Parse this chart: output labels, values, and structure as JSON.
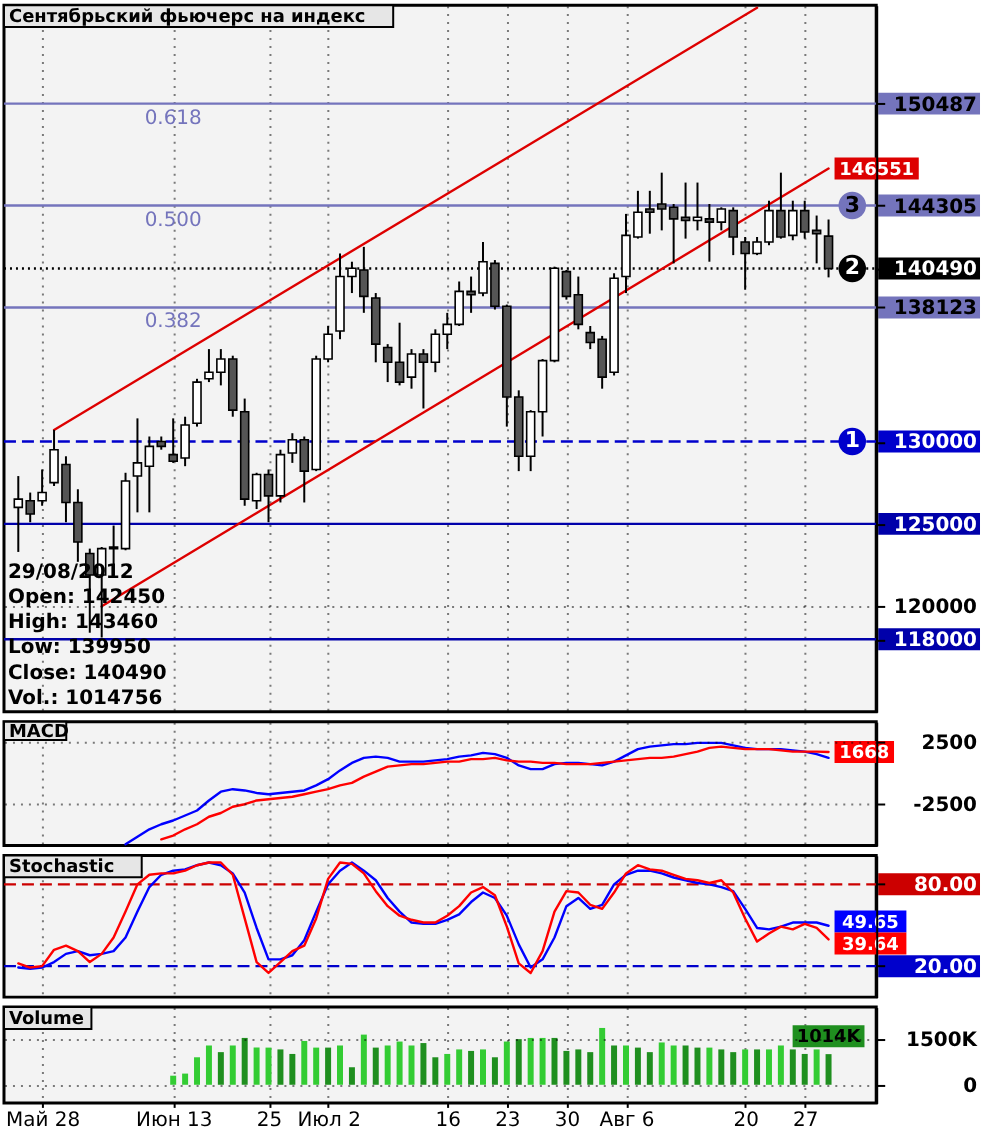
{
  "chart_data": [
    {
      "type": "candlestick",
      "title": "Сентябрьский фьючерс на индекс",
      "categories": [
        null,
        null,
        "Май 28",
        null,
        null,
        null,
        null,
        null,
        null,
        null,
        null,
        null,
        null,
        "Июн 13",
        null,
        null,
        null,
        null,
        null,
        null,
        null,
        "25",
        null,
        null,
        null,
        null,
        "Июл 2",
        null,
        null,
        null,
        null,
        null,
        null,
        null,
        null,
        null,
        "16",
        null,
        null,
        null,
        null,
        "23",
        null,
        null,
        null,
        null,
        "30",
        null,
        null,
        null,
        null,
        "Авг 6",
        null,
        null,
        null,
        null,
        null,
        null,
        null,
        null,
        null,
        "20",
        null,
        null,
        null,
        null,
        "27",
        null,
        null
      ],
      "ohlc": [
        [
          126000,
          127900,
          123300,
          126500
        ],
        [
          126400,
          126900,
          125100,
          125600
        ],
        [
          126400,
          128300,
          126100,
          126900
        ],
        [
          127500,
          130700,
          127300,
          129500
        ],
        [
          128600,
          129100,
          125100,
          126300
        ],
        [
          126300,
          127100,
          122700,
          123900
        ],
        [
          123200,
          123500,
          118400,
          121900
        ],
        [
          121900,
          123600,
          118110,
          123500
        ],
        [
          123500,
          124900,
          121900,
          123600
        ],
        [
          123500,
          128100,
          123400,
          127600
        ],
        [
          127900,
          131400,
          125700,
          128700
        ],
        [
          128500,
          130300,
          125700,
          129700
        ],
        [
          130000,
          130300,
          129500,
          129700
        ],
        [
          129200,
          131400,
          128700,
          128800
        ],
        [
          129000,
          131500,
          128500,
          131000
        ],
        [
          131100,
          133800,
          130900,
          133600
        ],
        [
          133800,
          135600,
          133600,
          134200
        ],
        [
          134200,
          135600,
          133400,
          135000
        ],
        [
          135000,
          135200,
          131500,
          131900
        ],
        [
          131800,
          132600,
          126100,
          126500
        ],
        [
          126400,
          128100,
          125900,
          128000
        ],
        [
          128000,
          128300,
          125100,
          126700
        ],
        [
          126700,
          129500,
          126300,
          129200
        ],
        [
          129300,
          130500,
          128700,
          130100
        ],
        [
          130100,
          130300,
          126300,
          128200
        ],
        [
          128300,
          135200,
          128200,
          135000
        ],
        [
          135000,
          137000,
          134800,
          136500
        ],
        [
          136700,
          141400,
          136200,
          140000
        ],
        [
          140000,
          140900,
          139000,
          140500
        ],
        [
          140400,
          141800,
          137800,
          138800
        ],
        [
          138700,
          139000,
          134800,
          135900
        ],
        [
          135700,
          135900,
          133600,
          134800
        ],
        [
          134800,
          137200,
          133400,
          133600
        ],
        [
          133900,
          135600,
          133200,
          135300
        ],
        [
          135300,
          135600,
          132000,
          134800
        ],
        [
          134800,
          136800,
          134200,
          136500
        ],
        [
          136500,
          137800,
          135600,
          137100
        ],
        [
          137100,
          139700,
          137000,
          139100
        ],
        [
          139100,
          140000,
          137800,
          138900
        ],
        [
          139000,
          142100,
          138800,
          140900
        ],
        [
          140800,
          141000,
          138000,
          138200
        ],
        [
          138200,
          138300,
          130900,
          132700
        ],
        [
          132700,
          133100,
          128200,
          129100
        ],
        [
          129100,
          131900,
          128200,
          131800
        ],
        [
          131800,
          135000,
          130300,
          134900
        ],
        [
          134900,
          140600,
          134800,
          140500
        ],
        [
          140300,
          140400,
          138600,
          138800
        ],
        [
          138900,
          140000,
          136800,
          137100
        ],
        [
          136600,
          137000,
          135600,
          136000
        ],
        [
          136200,
          136400,
          133200,
          133900
        ],
        [
          134200,
          140200,
          134000,
          139900
        ],
        [
          140000,
          143800,
          139000,
          142500
        ],
        [
          142400,
          145200,
          142300,
          143900
        ],
        [
          144100,
          145200,
          142600,
          143900
        ],
        [
          144400,
          146300,
          142800,
          144100
        ],
        [
          144200,
          144400,
          140800,
          143500
        ],
        [
          143600,
          145700,
          142300,
          143400
        ],
        [
          143400,
          145700,
          142800,
          143600
        ],
        [
          143500,
          144400,
          140900,
          143300
        ],
        [
          143300,
          144200,
          142800,
          144100
        ],
        [
          144000,
          144200,
          141300,
          142400
        ],
        [
          142100,
          142400,
          139200,
          141400
        ],
        [
          141400,
          142400,
          141300,
          142100
        ],
        [
          142100,
          144600,
          141900,
          144000
        ],
        [
          144000,
          146300,
          142300,
          142400
        ],
        [
          142500,
          144600,
          142200,
          144000
        ],
        [
          144000,
          144600,
          142300,
          142700
        ],
        [
          142800,
          143700,
          140800,
          142600
        ],
        [
          142450,
          143460,
          139950,
          140490
        ]
      ],
      "colors": [
        "#ffffff",
        "#555555",
        "#ffffff",
        "#ffffff",
        "#555555",
        "#555555",
        "#555555",
        "#ffffff",
        "#ffffff",
        "#ffffff",
        "#ffffff",
        "#ffffff",
        "#555555",
        "#555555",
        "#ffffff",
        "#ffffff",
        "#ffffff",
        "#ffffff",
        "#555555",
        "#555555",
        "#ffffff",
        "#555555",
        "#ffffff",
        "#ffffff",
        "#555555",
        "#ffffff",
        "#ffffff",
        "#ffffff",
        "#ffffff",
        "#555555",
        "#555555",
        "#555555",
        "#555555",
        "#ffffff",
        "#555555",
        "#ffffff",
        "#ffffff",
        "#ffffff",
        "#555555",
        "#ffffff",
        "#555555",
        "#555555",
        "#555555",
        "#ffffff",
        "#ffffff",
        "#ffffff",
        "#555555",
        "#555555",
        "#555555",
        "#555555",
        "#ffffff",
        "#ffffff",
        "#ffffff",
        "#555555",
        "#555555",
        "#555555",
        "#555555",
        "#ffffff",
        "#555555",
        "#ffffff",
        "#555555",
        "#555555",
        "#ffffff",
        "#ffffff",
        "#555555",
        "#ffffff",
        "#555555",
        "#555555",
        "#555555"
      ],
      "series": [
        {
          "type": "line",
          "color": "#dd0000",
          "values": [
            null,
            null,
            null,
            130700,
            null,
            null,
            null,
            null,
            null,
            null,
            null,
            null,
            null,
            null,
            null,
            null,
            null,
            null,
            null,
            null,
            null,
            null,
            null,
            null,
            null,
            null,
            null,
            null,
            null,
            null,
            null,
            null,
            null,
            null,
            null,
            null,
            null,
            null,
            null,
            null,
            null,
            null,
            null,
            null,
            null,
            null,
            null,
            null,
            null,
            null,
            null,
            null,
            null,
            null,
            null,
            null,
            null,
            null,
            null,
            null,
            null,
            null,
            156300,
            null,
            null,
            null,
            null,
            null,
            null
          ]
        },
        {
          "type": "line",
          "color": "#dd0000",
          "values": [
            null,
            null,
            null,
            null,
            null,
            null,
            null,
            120000,
            null,
            null,
            null,
            null,
            null,
            null,
            null,
            null,
            null,
            null,
            null,
            null,
            null,
            null,
            null,
            null,
            null,
            null,
            null,
            null,
            null,
            null,
            null,
            null,
            null,
            null,
            null,
            null,
            null,
            null,
            null,
            null,
            null,
            null,
            null,
            null,
            null,
            null,
            null,
            null,
            null,
            null,
            null,
            null,
            null,
            null,
            null,
            null,
            null,
            null,
            null,
            null,
            null,
            null,
            null,
            null,
            null,
            null,
            null,
            null,
            146551
          ],
          "value_labels": [
            null,
            null,
            null,
            null,
            null,
            null,
            null,
            null,
            null,
            null,
            null,
            null,
            null,
            null,
            null,
            null,
            null,
            null,
            null,
            null,
            null,
            null,
            null,
            null,
            null,
            null,
            null,
            null,
            null,
            null,
            null,
            null,
            null,
            null,
            null,
            null,
            null,
            null,
            null,
            null,
            null,
            null,
            null,
            null,
            null,
            null,
            null,
            null,
            null,
            null,
            null,
            null,
            null,
            null,
            null,
            null,
            null,
            null,
            null,
            null,
            null,
            null,
            null,
            null,
            null,
            null,
            null,
            null,
            "146551"
          ]
        }
      ],
      "ylim": [
        113610,
        156460
      ],
      "yticks": [
        118000,
        120000,
        125000,
        130000,
        138123,
        140490,
        144305,
        150487
      ],
      "ref_lines": [
        {
          "axis": "y",
          "value": 150487,
          "color": "#7474bc"
        },
        {
          "axis": "y",
          "value": 144305,
          "color": "#7474bc"
        },
        {
          "axis": "y",
          "value": 138123,
          "color": "#7474bc"
        },
        {
          "axis": "y",
          "value": 140490,
          "color": "#000000",
          "line_style": "dotted"
        },
        {
          "axis": "y",
          "value": 130000,
          "color": "#0000cc",
          "line_style": "dashed"
        },
        {
          "axis": "y",
          "value": 125000,
          "color": "#0000aa"
        },
        {
          "axis": "y",
          "value": 118000,
          "color": "#0000aa"
        }
      ],
      "annotations": [
        "29/08/2012",
        "Open: 142450",
        "High: 143460",
        "Low: 139950",
        "Close: 140490",
        "Vol.: 1014756",
        {
          "text": "0.618",
          "x": "Июн 13",
          "y": 150487
        },
        {
          "text": "0.500",
          "x": "Июн 13",
          "y": 144305
        },
        {
          "text": "0.382",
          "x": "Июн 13",
          "y": 138123
        },
        {
          "text": "1",
          "y": 130000
        },
        {
          "text": "3",
          "y": 144305
        },
        {
          "text": "2",
          "y": 140490
        }
      ],
      "grid": true,
      "tick_labels": "y"
    },
    {
      "type": "line",
      "title": "MACD",
      "categories": [
        null,
        null,
        "Май 28",
        null,
        null,
        null,
        null,
        null,
        null,
        null,
        null,
        null,
        null,
        "Июн 13",
        null,
        null,
        null,
        null,
        null,
        null,
        null,
        "25",
        null,
        null,
        null,
        null,
        "Июл 2",
        null,
        null,
        null,
        null,
        null,
        null,
        null,
        null,
        null,
        "16",
        null,
        null,
        null,
        null,
        "23",
        null,
        null,
        null,
        null,
        "30",
        null,
        null,
        null,
        null,
        "Авг 6",
        null,
        null,
        null,
        null,
        null,
        null,
        null,
        null,
        null,
        "20",
        null,
        null,
        null,
        null,
        "27",
        null,
        null
      ],
      "series": [
        {
          "color": "#0000ff",
          "values": [
            null,
            null,
            null,
            null,
            null,
            null,
            null,
            null,
            null,
            -5700,
            -5100,
            -4500,
            -4100,
            -3800,
            -3400,
            -3000,
            -2200,
            -1500,
            -1300,
            -1400,
            -1600,
            -1700,
            -1600,
            -1500,
            -1400,
            -1000,
            -500,
            200,
            800,
            1200,
            1300,
            1200,
            900,
            900,
            900,
            1000,
            1100,
            1300,
            1400,
            1600,
            1500,
            1200,
            600,
            300,
            300,
            700,
            800,
            800,
            700,
            600,
            900,
            1400,
            1900,
            2100,
            2200,
            2300,
            2300,
            2400,
            2400,
            2400,
            2200,
            2000,
            1900,
            1900,
            1900,
            1800,
            1700,
            1500,
            1200
          ]
        },
        {
          "color": "#ff0000",
          "values": [
            null,
            null,
            null,
            null,
            null,
            null,
            null,
            null,
            null,
            null,
            null,
            null,
            -5300,
            -5000,
            -4500,
            -4100,
            -3500,
            -3200,
            -2700,
            -2500,
            -2200,
            -2100,
            -2000,
            -1900,
            -1700,
            -1500,
            -1300,
            -1000,
            -800,
            -300,
            100,
            500,
            600,
            700,
            700,
            800,
            900,
            900,
            1100,
            1100,
            1200,
            1000,
            900,
            900,
            800,
            800,
            700,
            700,
            700,
            800,
            900,
            1000,
            1100,
            1200,
            1200,
            1300,
            1500,
            1700,
            2000,
            2100,
            2000,
            1900,
            1900,
            1900,
            1800,
            1700,
            1700,
            1700,
            1668
          ],
          "value_labels": [
            null,
            null,
            null,
            null,
            null,
            null,
            null,
            null,
            null,
            null,
            null,
            null,
            null,
            null,
            null,
            null,
            null,
            null,
            null,
            null,
            null,
            null,
            null,
            null,
            null,
            null,
            null,
            null,
            null,
            null,
            null,
            null,
            null,
            null,
            null,
            null,
            null,
            null,
            null,
            null,
            null,
            null,
            null,
            null,
            null,
            null,
            null,
            null,
            null,
            null,
            null,
            null,
            null,
            null,
            null,
            null,
            null,
            null,
            null,
            null,
            null,
            null,
            null,
            null,
            null,
            null,
            null,
            null,
            "1668"
          ]
        }
      ],
      "ylim": [
        -5790,
        4090
      ],
      "yticks": [
        2500,
        -2500
      ],
      "grid": true,
      "tick_labels": "y"
    },
    {
      "type": "line",
      "title": "Stochastic",
      "categories": [
        null,
        null,
        "Май 28",
        null,
        null,
        null,
        null,
        null,
        null,
        null,
        null,
        null,
        null,
        "Июн 13",
        null,
        null,
        null,
        null,
        null,
        null,
        null,
        "25",
        null,
        null,
        null,
        null,
        "Июл 2",
        null,
        null,
        null,
        null,
        null,
        null,
        null,
        null,
        null,
        "16",
        null,
        null,
        null,
        null,
        "23",
        null,
        null,
        null,
        null,
        "30",
        null,
        null,
        null,
        null,
        "Авг 6",
        null,
        null,
        null,
        null,
        null,
        null,
        null,
        null,
        null,
        "20",
        null,
        null,
        null,
        null,
        "27",
        null,
        null
      ],
      "series": [
        {
          "color": "#0000ff",
          "values": [
            19,
            18,
            19,
            23,
            29,
            31,
            28,
            29,
            31,
            41,
            60,
            78,
            87,
            90,
            91,
            94,
            96,
            94,
            88,
            74,
            48,
            25,
            25,
            28,
            39,
            60,
            80,
            90,
            96,
            90,
            83,
            70,
            60,
            52,
            51,
            51,
            54,
            58,
            67,
            74,
            70,
            57,
            36,
            19,
            25,
            41,
            64,
            70,
            62,
            65,
            80,
            87,
            90,
            90,
            88,
            85,
            83,
            81,
            80,
            78,
            75,
            62,
            48,
            47,
            49,
            52,
            52,
            52,
            49.65
          ],
          "value_labels": [
            null,
            null,
            null,
            null,
            null,
            null,
            null,
            null,
            null,
            null,
            null,
            null,
            null,
            null,
            null,
            null,
            null,
            null,
            null,
            null,
            null,
            null,
            null,
            null,
            null,
            null,
            null,
            null,
            null,
            null,
            null,
            null,
            null,
            null,
            null,
            null,
            null,
            null,
            null,
            null,
            null,
            null,
            null,
            null,
            null,
            null,
            null,
            null,
            null,
            null,
            null,
            null,
            null,
            null,
            null,
            null,
            null,
            null,
            null,
            null,
            null,
            null,
            null,
            null,
            null,
            null,
            null,
            null,
            "49.65"
          ]
        },
        {
          "color": "#ff0000",
          "values": [
            22,
            19,
            20,
            32,
            35,
            31,
            23,
            29,
            41,
            60,
            80,
            87,
            88,
            88,
            90,
            94,
            96,
            96,
            87,
            55,
            23,
            15,
            23,
            31,
            35,
            55,
            84,
            96,
            95,
            88,
            75,
            64,
            57,
            54,
            52,
            52,
            57,
            64,
            74,
            78,
            72,
            49,
            22,
            15,
            31,
            60,
            75,
            74,
            65,
            62,
            74,
            88,
            94,
            91,
            90,
            87,
            84,
            83,
            81,
            83,
            74,
            55,
            38,
            44,
            49,
            47,
            51,
            48,
            39.64
          ],
          "value_labels": [
            null,
            null,
            null,
            null,
            null,
            null,
            null,
            null,
            null,
            null,
            null,
            null,
            null,
            null,
            null,
            null,
            null,
            null,
            null,
            null,
            null,
            null,
            null,
            null,
            null,
            null,
            null,
            null,
            null,
            null,
            null,
            null,
            null,
            null,
            null,
            null,
            null,
            null,
            null,
            null,
            null,
            null,
            null,
            null,
            null,
            null,
            null,
            null,
            null,
            null,
            null,
            null,
            null,
            null,
            null,
            null,
            null,
            null,
            null,
            null,
            null,
            null,
            null,
            null,
            null,
            null,
            null,
            null,
            "39.64"
          ]
        }
      ],
      "ylim": [
        -2.7,
        101.2
      ],
      "yticks": [
        {
          "value": 80,
          "label": "80.00"
        },
        {
          "value": 20,
          "label": "20.00"
        }
      ],
      "ref_lines": [
        {
          "axis": "y",
          "value": 80,
          "color": "#cc0000",
          "line_style": "dashed"
        },
        {
          "axis": "y",
          "value": 20,
          "color": "#0000cc",
          "line_style": "dashed"
        }
      ],
      "grid": true,
      "tick_labels": "y"
    },
    {
      "type": "bar",
      "title": "Volume",
      "categories": [
        null,
        null,
        "Май 28",
        null,
        null,
        null,
        null,
        null,
        null,
        null,
        null,
        null,
        null,
        "Июн 13",
        null,
        null,
        null,
        null,
        null,
        null,
        null,
        "25",
        null,
        null,
        null,
        null,
        "Июл 2",
        null,
        null,
        null,
        null,
        null,
        null,
        null,
        null,
        null,
        "16",
        null,
        null,
        null,
        null,
        "23",
        null,
        null,
        null,
        null,
        "30",
        null,
        null,
        null,
        null,
        "Авг 6",
        null,
        null,
        null,
        null,
        null,
        null,
        null,
        null,
        null,
        "20",
        null,
        null,
        null,
        null,
        "27",
        null,
        null
      ],
      "values": [
        null,
        null,
        null,
        null,
        null,
        null,
        null,
        null,
        null,
        null,
        null,
        null,
        null,
        300,
        370,
        910,
        1300,
        1080,
        1300,
        1550,
        1230,
        1230,
        1170,
        1020,
        1450,
        1230,
        1230,
        1300,
        580,
        1660,
        1230,
        1300,
        1430,
        1300,
        1380,
        910,
        1020,
        1170,
        1120,
        1170,
        910,
        1430,
        1510,
        1550,
        1550,
        1550,
        1120,
        1170,
        1080,
        1880,
        1300,
        1300,
        1230,
        1080,
        1400,
        1300,
        1300,
        1230,
        1230,
        1170,
        1080,
        1170,
        1170,
        1170,
        1300,
        1170,
        1020,
        1170,
        1014
      ],
      "colors": [
        null,
        null,
        null,
        null,
        null,
        null,
        null,
        null,
        null,
        null,
        null,
        null,
        null,
        "#33cc33",
        "#33cc33",
        "#33cc33",
        "#33cc33",
        "#1f8f1f",
        "#33cc33",
        "#1f8f1f",
        "#33cc33",
        "#33cc33",
        "#1f8f1f",
        "#1f8f1f",
        "#33cc33",
        "#33cc33",
        "#1f8f1f",
        "#33cc33",
        "#1f8f1f",
        "#33cc33",
        "#1f8f1f",
        "#33cc33",
        "#33cc33",
        "#33cc33",
        "#1f8f1f",
        "#1f8f1f",
        "#33cc33",
        "#33cc33",
        "#1f8f1f",
        "#33cc33",
        "#1f8f1f",
        "#33cc33",
        "#1f8f1f",
        "#33cc33",
        "#33cc33",
        "#1f8f1f",
        "#1f8f1f",
        "#1f8f1f",
        "#1f8f1f",
        "#33cc33",
        "#1f8f1f",
        "#33cc33",
        "#1f8f1f",
        "#1f8f1f",
        "#33cc33",
        "#33cc33",
        "#1f8f1f",
        "#1f8f1f",
        "#33cc33",
        "#1f8f1f",
        "#1f8f1f",
        "#33cc33",
        "#1f8f1f",
        "#33cc33",
        "#33cc33",
        "#1f8f1f",
        "#1f8f1f",
        "#33cc33",
        "#1f8f1f"
      ],
      "value_labels": [
        null,
        null,
        null,
        null,
        null,
        null,
        null,
        null,
        null,
        null,
        null,
        null,
        null,
        null,
        null,
        null,
        null,
        null,
        null,
        null,
        null,
        null,
        null,
        null,
        null,
        null,
        null,
        null,
        null,
        null,
        null,
        null,
        null,
        null,
        null,
        null,
        null,
        null,
        null,
        null,
        null,
        null,
        null,
        null,
        null,
        null,
        null,
        null,
        null,
        null,
        null,
        null,
        null,
        null,
        null,
        null,
        null,
        null,
        null,
        null,
        null,
        null,
        null,
        null,
        null,
        null,
        null,
        null,
        "1014K"
      ],
      "ylim": [
        -600,
        2570
      ],
      "yticks": [
        {
          "value": 1500,
          "label": "1500K"
        },
        0
      ],
      "grid": true
    }
  ]
}
